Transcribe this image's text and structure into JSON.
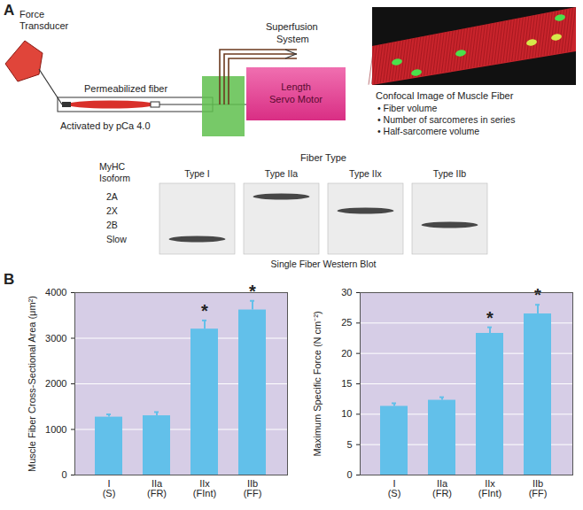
{
  "panel_labels": [
    "A",
    "B"
  ],
  "diagram": {
    "force_transducer": [
      "Force",
      "Transducer"
    ],
    "superfusion": [
      "Superfusion",
      "System"
    ],
    "fiber": "Permeabilized fiber",
    "activation": "Activated by pCa 4.0",
    "motor": [
      "Length",
      "Servo Motor"
    ],
    "confocal_title": "Confocal Image of Muscle Fiber",
    "confocal_bullets": [
      "• Fiber volume",
      "• Number of sarcomeres in series",
      "• Half-sarcomere volume"
    ]
  },
  "blot": {
    "title": "Fiber Type",
    "row_title": [
      "MyHC",
      "Isoform"
    ],
    "rows": [
      "2A",
      "2X",
      "2B",
      "Slow"
    ],
    "lanes": [
      {
        "label": "Type I",
        "band": "Slow"
      },
      {
        "label": "Type IIa",
        "band": "2A"
      },
      {
        "label": "Type IIx",
        "band": "2X"
      },
      {
        "label": "Type IIb",
        "band": "2B"
      }
    ],
    "caption": "Single Fiber Western Blot"
  },
  "chart_data": [
    {
      "type": "bar",
      "categories": [
        "I\n(S)",
        "IIa\n(FR)",
        "IIx\n(FInt)",
        "IIb\n(FF)"
      ],
      "values": [
        1270,
        1300,
        3200,
        3620
      ],
      "errors": [
        60,
        80,
        190,
        200
      ],
      "annotations": [
        null,
        null,
        "*",
        "*"
      ],
      "ylabel": "Muscle Fiber Cross-Sectional Area (μm²)",
      "ylim": [
        0,
        4000
      ],
      "yticks": [
        0,
        1000,
        2000,
        3000,
        4000
      ],
      "grid": true,
      "color": "#62c0ea"
    },
    {
      "type": "bar",
      "categories": [
        "I\n(S)",
        "IIa\n(FR)",
        "IIx\n(FInt)",
        "IIb\n(FF)"
      ],
      "values": [
        11.3,
        12.3,
        23.3,
        26.5
      ],
      "errors": [
        0.5,
        0.5,
        1.0,
        1.5
      ],
      "annotations": [
        null,
        null,
        "*",
        "*"
      ],
      "ylabel": "Maximum Specific Force (N cm⁻²)",
      "ylim": [
        0,
        30
      ],
      "yticks": [
        0,
        5,
        10,
        15,
        20,
        25,
        30
      ],
      "grid": true,
      "color": "#62c0ea"
    }
  ]
}
